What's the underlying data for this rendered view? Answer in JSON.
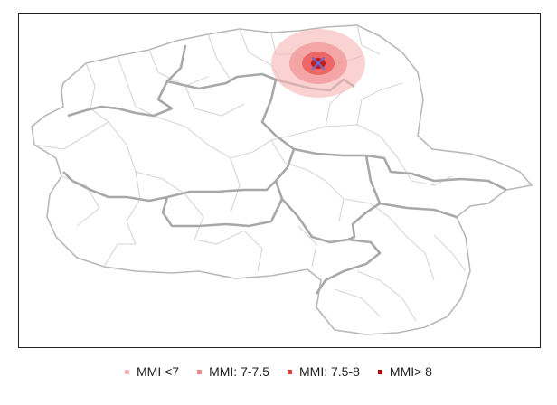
{
  "map": {
    "epicenter_marker": "x-icon",
    "intensity_zones": [
      {
        "label": "MMI <7",
        "color": "#f7b7b7"
      },
      {
        "label": "MMI: 7-7.5",
        "color": "#f08a8a"
      },
      {
        "label": "MMI: 7.5-8",
        "color": "#e84040"
      },
      {
        "label": "MMI> 8",
        "color": "#b00000"
      }
    ],
    "colors": {
      "outer_boundary": "#b8b8b8",
      "district_boundary": "#d6d6d6",
      "region_boundary": "#a8a8a8",
      "epicenter": "#6b6bd6"
    }
  },
  "legend": {
    "items": [
      {
        "label": "MMI <7",
        "color": "#f7b7b7"
      },
      {
        "label": "MMI: 7-7.5",
        "color": "#f08a8a"
      },
      {
        "label": "MMI: 7.5-8",
        "color": "#e84040"
      },
      {
        "label": "MMI> 8",
        "color": "#b00000"
      }
    ]
  }
}
